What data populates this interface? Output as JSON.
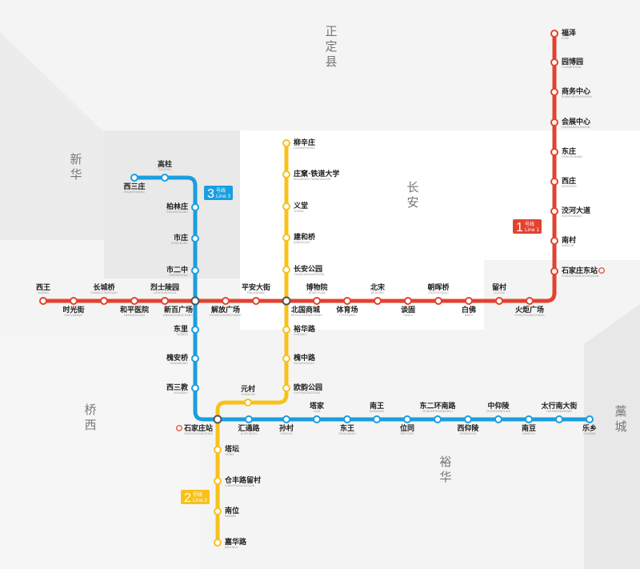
{
  "districts": [
    "正定县",
    "新华",
    "长安",
    "桥西",
    "裕华",
    "藁城"
  ],
  "colors": {
    "line1": "#e2432f",
    "line2": "#f8c21b",
    "line3": "#1a9ee0",
    "transfer": "#555555",
    "railway": "#e2432f"
  },
  "badges": [
    {
      "num": "1",
      "cn": "号线",
      "en": "Line 1"
    },
    {
      "num": "2",
      "cn": "号线",
      "en": "Line 2"
    },
    {
      "num": "3",
      "cn": "号线",
      "en": "Line 3"
    }
  ],
  "line1": {
    "stations": [
      [
        "西王",
        "XIWANG"
      ],
      [
        "时光街",
        "SHIGUANGJIE"
      ],
      [
        "长城桥",
        "CHANGCHENGQIAO"
      ],
      [
        "和平医院",
        "HEPINGYIYUAN"
      ],
      [
        "烈士陵园",
        "LIESHILINGYUAN"
      ],
      [
        "新百广场",
        "XINBAIGUANGCHANG"
      ],
      [
        "解放广场",
        "JIEFANGGUANGCHANG"
      ],
      [
        "平安大街",
        "PINGANDAJIE"
      ],
      [
        "北国商城",
        "BEIGUOSHANGCHENG"
      ],
      [
        "博物院",
        "BOWUYUAN"
      ],
      [
        "体育场",
        "TIYUCHANG"
      ],
      [
        "北宋",
        "BEISONG"
      ],
      [
        "谈固",
        "TANGU"
      ],
      [
        "朝晖桥",
        "ZHAOHUIQIAO"
      ],
      [
        "白佛",
        "BAIFO"
      ],
      [
        "留村",
        "LIUCUN"
      ],
      [
        "火炬广场",
        "HUOJUGUANGCHANG"
      ],
      [
        "石家庄东站",
        "SHIJIAZHUANGDONGZHAN"
      ],
      [
        "南村",
        "NANCUN"
      ],
      [
        "洨河大道",
        "XIAOHEDADAO"
      ],
      [
        "西庄",
        "XIZHUANG"
      ],
      [
        "东庄",
        "DONGZHUANG"
      ],
      [
        "会展中心",
        "HUIZHANZHONGXIN"
      ],
      [
        "商务中心",
        "SHANGWUZHONGXIN"
      ],
      [
        "园博园",
        "YUANBOYUAN"
      ],
      [
        "福泽",
        "FUZE"
      ]
    ]
  },
  "line2": {
    "stations": [
      [
        "柳辛庄",
        "LIUXINZHUANG"
      ],
      [
        "庄窠·铁道大学",
        "ZHUANGKE TIEDAODAXUE"
      ],
      [
        "义堂",
        "YITANG"
      ],
      [
        "建和桥",
        "JIANHEQIAO"
      ],
      [
        "长安公园",
        "CHANGANGONGYUAN"
      ],
      [
        "裕华路",
        "YUHUALU"
      ],
      [
        "槐中路",
        "HUAIZHONGLU"
      ],
      [
        "欧韵公园",
        "OUYUNGONGYUAN"
      ],
      [
        "元村",
        "YUANCUN"
      ],
      [
        "塔坛",
        "TATAN"
      ],
      [
        "仓丰路留村",
        "CANGFENGLULIUCUN"
      ],
      [
        "南位",
        "NANWEI"
      ],
      [
        "嘉华路",
        "JIAHUALU"
      ]
    ]
  },
  "line3": {
    "stations": [
      [
        "西三庄",
        "XISANZHUANG"
      ],
      [
        "高柱",
        "GAOZHU"
      ],
      [
        "柏林庄",
        "BAILINZHUANG"
      ],
      [
        "市庄",
        "SHIZHUANG"
      ],
      [
        "市二中",
        "SHIERZHONG"
      ],
      [
        "东里",
        "DONGLI"
      ],
      [
        "槐安桥",
        "HUAIANQIAO"
      ],
      [
        "西三教",
        "XISANJIAO"
      ],
      [
        "石家庄站",
        "SHIJIAZHUANGZHAN"
      ],
      [
        "汇通路",
        "HUITONGLU"
      ],
      [
        "孙村",
        "SUNCUN"
      ],
      [
        "塔家",
        "TAJIA"
      ],
      [
        "东王",
        "DONGWANG"
      ],
      [
        "南王",
        "NANWANG"
      ],
      [
        "位同",
        "WEITONG"
      ],
      [
        "东二环南路",
        "DONGERHUANNANLU"
      ],
      [
        "西仰陵",
        "XIYANGLING"
      ],
      [
        "中仰陵",
        "ZHONGYANGLING"
      ],
      [
        "南豆",
        "NANDOU"
      ],
      [
        "太行南大街",
        "TAIHANGNANDAJIE"
      ],
      [
        "乐乡",
        "LEXIANG"
      ]
    ]
  }
}
